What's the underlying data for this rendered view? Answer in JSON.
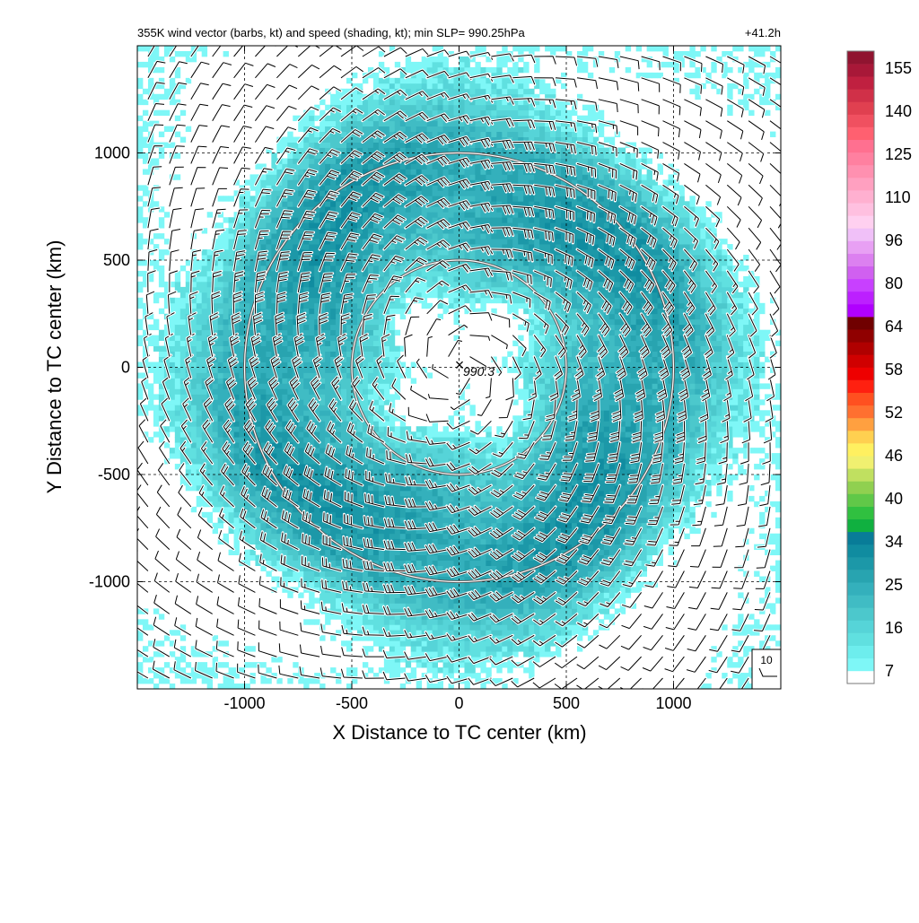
{
  "header": {
    "title_left": "355K wind vector (barbs, kt) and speed (shading, kt); min SLP= 990.25hPa",
    "title_right": "+41.2h"
  },
  "chart_data": {
    "type": "heatmap",
    "title": "355K wind vector (barbs, kt) and speed (shading, kt); min SLP= 990.25hPa",
    "forecast_hour_label": "+41.2h",
    "xlabel": "X Distance to TC center (km)",
    "ylabel": "Y Distance to TC center (km)",
    "xlim": [
      -1500,
      1500
    ],
    "ylim": [
      -1500,
      1500
    ],
    "x_ticks": [
      -1000,
      -500,
      0,
      500,
      1000
    ],
    "x_tick_labels": [
      "-1000",
      "-500",
      "0",
      "500",
      "1000"
    ],
    "y_ticks": [
      -1000,
      -500,
      0,
      500,
      1000
    ],
    "y_tick_labels": [
      "-1000",
      "-500",
      "0",
      "500",
      "1000"
    ],
    "grid": true,
    "grid_style": "dashed",
    "center_marker": {
      "x": 0,
      "y": 0,
      "symbol": "×",
      "label": "990.3"
    },
    "range_circles_km": [
      500,
      1000
    ],
    "speed_field": {
      "units": "kt",
      "description_levels": [
        {
          "radius_km": 0,
          "speed": 0
        },
        {
          "radius_km": 250,
          "speed": 4
        },
        {
          "radius_km": 450,
          "speed": 14
        },
        {
          "radius_km": 600,
          "speed": 22
        },
        {
          "radius_km": 850,
          "speed": 28
        },
        {
          "radius_km": 1050,
          "speed": 26
        },
        {
          "radius_km": 1250,
          "speed": 12
        },
        {
          "radius_km": 1450,
          "speed": 4
        }
      ]
    },
    "barb_spacing_km": 100,
    "reference_barb": {
      "label": "10",
      "speed_kt": 10
    },
    "colorbar": {
      "tick_labels": [
        "155",
        "140",
        "125",
        "110",
        "96",
        "80",
        "64",
        "58",
        "52",
        "46",
        "40",
        "34",
        "25",
        "16",
        "7"
      ],
      "colors": [
        "#ffffff",
        "#7ef7f7",
        "#6deded",
        "#60e0e0",
        "#56d4d8",
        "#4cc8cc",
        "#40bcc4",
        "#34b0bc",
        "#28a4b0",
        "#1c98a8",
        "#108ca0",
        "#087c98",
        "#10b040",
        "#30c040",
        "#60c848",
        "#90d050",
        "#c0e060",
        "#f0f070",
        "#fff060",
        "#ffd050",
        "#ffa040",
        "#ff7030",
        "#ff5020",
        "#ff2010",
        "#ee0000",
        "#d00000",
        "#b00000",
        "#900000",
        "#700000",
        "#b000ff",
        "#bc20ff",
        "#c840ff",
        "#d060f0",
        "#dc80f0",
        "#e8a0f4",
        "#f0c0f8",
        "#ffd0f0",
        "#ffc0e0",
        "#ffb0d0",
        "#ffa0c0",
        "#ff90b0",
        "#ff80a0",
        "#ff7090",
        "#ff6070",
        "#f05060",
        "#e04050",
        "#d03048",
        "#c02040",
        "#a81838",
        "#901430"
      ]
    }
  }
}
